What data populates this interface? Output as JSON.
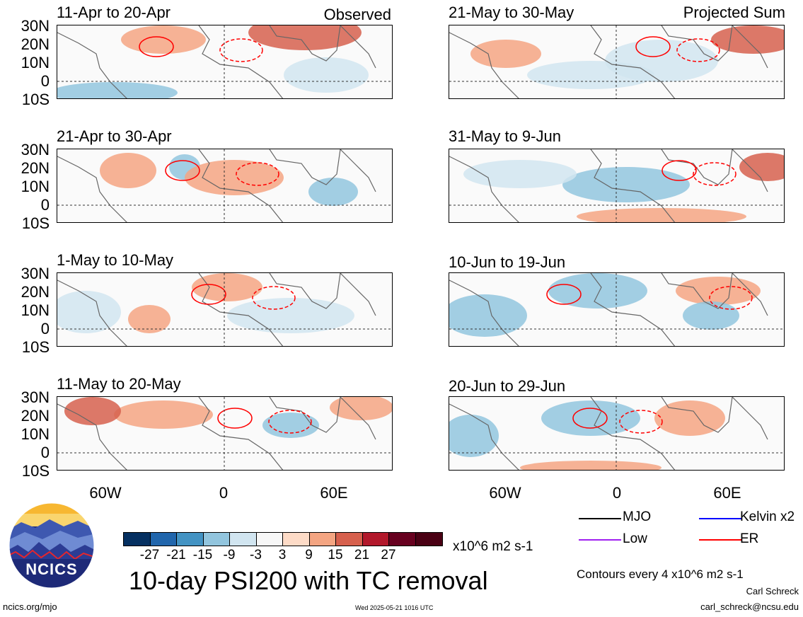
{
  "panels": {
    "left": [
      {
        "title": "11-Apr to 20-Apr",
        "corner": "Observed"
      },
      {
        "title": "21-Apr to 30-Apr",
        "corner": ""
      },
      {
        "title": "1-May to 10-May",
        "corner": ""
      },
      {
        "title": "11-May to 20-May",
        "corner": ""
      }
    ],
    "right": [
      {
        "title": "21-May to 30-May",
        "corner": "Projected Sum"
      },
      {
        "title": "31-May to 9-Jun",
        "corner": ""
      },
      {
        "title": "10-Jun to 19-Jun",
        "corner": ""
      },
      {
        "title": "20-Jun to 29-Jun",
        "corner": ""
      }
    ]
  },
  "lat_labels": [
    "30N",
    "20N",
    "10N",
    "0",
    "10S"
  ],
  "lon_labels": [
    "60W",
    "0",
    "60E"
  ],
  "colorbar": {
    "colors": [
      "#053061",
      "#2166ac",
      "#4393c3",
      "#92c5de",
      "#d1e5f0",
      "#f7f7f7",
      "#fddbc7",
      "#f4a582",
      "#d6604d",
      "#b2182b",
      "#67001f",
      "#4a0014"
    ],
    "ticks": [
      "-27",
      "-21",
      "-15",
      "-9",
      "-3",
      "3",
      "9",
      "15",
      "21",
      "27"
    ],
    "units": "x10^6 m2 s-1"
  },
  "legend": {
    "items": [
      {
        "label": "MJO",
        "color": "#000000"
      },
      {
        "label": "Kelvin x2",
        "color": "#0000ff"
      },
      {
        "label": "Low",
        "color": "#a020f0"
      },
      {
        "label": "ER",
        "color": "#ff0000"
      }
    ],
    "contours_note": "Contours every 4 x10^6 m2 s-1"
  },
  "main_title": "10-day PSI200 with TC removal",
  "logo_text": "NCICS",
  "footer": {
    "url": "ncics.org/mjo",
    "timestamp": "Wed 2025-05-21 1016 UTC",
    "author": "Carl Schreck",
    "email": "carl_schreck@ncsu.edu"
  },
  "colors": {
    "positive": "#f4a582",
    "positive_strong": "#d6604d",
    "negative": "#92c5de",
    "negative_light": "#d1e5f0",
    "contour": "#ff0000",
    "coast": "#666666"
  }
}
